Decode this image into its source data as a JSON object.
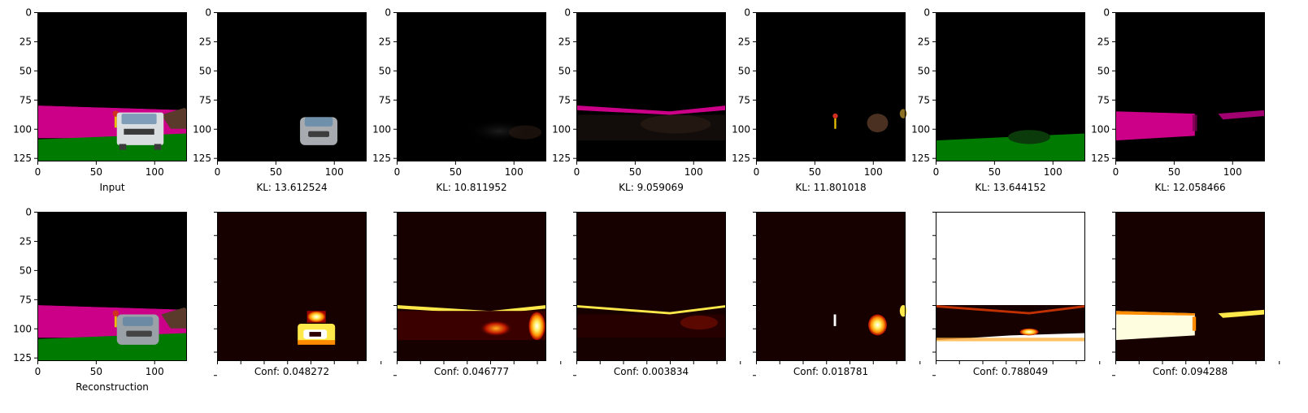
{
  "figure": {
    "background": "#ffffff",
    "image_colors": {
      "black": "#000000",
      "magenta": "#cc0088",
      "green": "#007a00",
      "car_body": "#d9dde0",
      "car_window": "#7f9db8",
      "car_dark": "#3a3a3a",
      "debris_brown": "#5a3a2a",
      "pole_yellow": "#e8c000",
      "pole_red": "#d03020",
      "heat_dark": "#160000",
      "heat_red": "#b00000",
      "heat_orange": "#ff8c00",
      "heat_yellow": "#ffe84a",
      "heat_white": "#ffffff"
    }
  },
  "chart_data": [
    {
      "type": "heatmap",
      "row": "top",
      "image": "input",
      "xlabel": "Input",
      "x_ticks": [
        "0",
        "50",
        "100"
      ],
      "y_ticks": [
        "0",
        "25",
        "50",
        "75",
        "100",
        "125"
      ],
      "xlim": [
        0,
        128
      ],
      "ylim": [
        128,
        0
      ]
    },
    {
      "type": "heatmap",
      "row": "top",
      "image": "component 1",
      "xlabel": "KL: 13.612524",
      "kl": 13.612524,
      "x_ticks": [
        "0",
        "50",
        "100"
      ],
      "y_ticks": [
        "0",
        "25",
        "50",
        "75",
        "100",
        "125"
      ],
      "xlim": [
        0,
        128
      ],
      "ylim": [
        128,
        0
      ]
    },
    {
      "type": "heatmap",
      "row": "top",
      "image": "component 2",
      "xlabel": "KL: 10.811952",
      "kl": 10.811952,
      "x_ticks": [
        "0",
        "50",
        "100"
      ],
      "y_ticks": [
        "0",
        "25",
        "50",
        "75",
        "100",
        "125"
      ],
      "xlim": [
        0,
        128
      ],
      "ylim": [
        128,
        0
      ]
    },
    {
      "type": "heatmap",
      "row": "top",
      "image": "component 3",
      "xlabel": "KL: 9.059069",
      "kl": 9.059069,
      "x_ticks": [
        "0",
        "50",
        "100"
      ],
      "y_ticks": [
        "0",
        "25",
        "50",
        "75",
        "100",
        "125"
      ],
      "xlim": [
        0,
        128
      ],
      "ylim": [
        128,
        0
      ]
    },
    {
      "type": "heatmap",
      "row": "top",
      "image": "component 4",
      "xlabel": "KL: 11.801018",
      "kl": 11.801018,
      "x_ticks": [
        "0",
        "50",
        "100"
      ],
      "y_ticks": [
        "0",
        "25",
        "50",
        "75",
        "100",
        "125"
      ],
      "xlim": [
        0,
        128
      ],
      "ylim": [
        128,
        0
      ]
    },
    {
      "type": "heatmap",
      "row": "top",
      "image": "component 5",
      "xlabel": "KL: 13.644152",
      "kl": 13.644152,
      "x_ticks": [
        "0",
        "50",
        "100"
      ],
      "y_ticks": [
        "0",
        "25",
        "50",
        "75",
        "100",
        "125"
      ],
      "xlim": [
        0,
        128
      ],
      "ylim": [
        128,
        0
      ]
    },
    {
      "type": "heatmap",
      "row": "top",
      "image": "component 6",
      "xlabel": "KL: 12.058466",
      "kl": 12.058466,
      "x_ticks": [
        "0",
        "50",
        "100"
      ],
      "y_ticks": [
        "0",
        "25",
        "50",
        "75",
        "100",
        "125"
      ],
      "xlim": [
        0,
        128
      ],
      "ylim": [
        128,
        0
      ]
    },
    {
      "type": "heatmap",
      "row": "bottom",
      "image": "reconstruction",
      "xlabel": "Reconstruction",
      "x_ticks": [
        "0",
        "50",
        "100"
      ],
      "y_ticks": [
        "0",
        "25",
        "50",
        "75",
        "100",
        "125"
      ],
      "xlim": [
        0,
        128
      ],
      "ylim": [
        128,
        0
      ]
    },
    {
      "type": "heatmap",
      "row": "bottom",
      "image": "confidence 1",
      "xlabel": "Conf: 0.048272",
      "conf": 0.048272,
      "x_ticks": [
        "",
        "",
        "",
        "",
        "",
        "",
        "",
        ""
      ],
      "y_ticks": [
        "",
        "",
        "",
        "",
        "",
        "",
        "",
        ""
      ],
      "xlim": [
        0,
        128
      ],
      "ylim": [
        128,
        0
      ]
    },
    {
      "type": "heatmap",
      "row": "bottom",
      "image": "confidence 2",
      "xlabel": "Conf: 0.046777",
      "conf": 0.046777,
      "x_ticks": [
        "",
        "",
        "",
        "",
        "",
        "",
        "",
        ""
      ],
      "y_ticks": [
        "",
        "",
        "",
        "",
        "",
        "",
        "",
        ""
      ],
      "xlim": [
        0,
        128
      ],
      "ylim": [
        128,
        0
      ]
    },
    {
      "type": "heatmap",
      "row": "bottom",
      "image": "confidence 3",
      "xlabel": "Conf: 0.003834",
      "conf": 0.003834,
      "x_ticks": [
        "",
        "",
        "",
        "",
        "",
        "",
        "",
        ""
      ],
      "y_ticks": [
        "",
        "",
        "",
        "",
        "",
        "",
        "",
        ""
      ],
      "xlim": [
        0,
        128
      ],
      "ylim": [
        128,
        0
      ]
    },
    {
      "type": "heatmap",
      "row": "bottom",
      "image": "confidence 4",
      "xlabel": "Conf: 0.018781",
      "conf": 0.018781,
      "x_ticks": [
        "",
        "",
        "",
        "",
        "",
        "",
        "",
        ""
      ],
      "y_ticks": [
        "",
        "",
        "",
        "",
        "",
        "",
        "",
        ""
      ],
      "xlim": [
        0,
        128
      ],
      "ylim": [
        128,
        0
      ]
    },
    {
      "type": "heatmap",
      "row": "bottom",
      "image": "confidence 5",
      "xlabel": "Conf: 0.788049",
      "conf": 0.788049,
      "x_ticks": [
        "",
        "",
        "",
        "",
        "",
        "",
        "",
        ""
      ],
      "y_ticks": [
        "",
        "",
        "",
        "",
        "",
        "",
        "",
        ""
      ],
      "xlim": [
        0,
        128
      ],
      "ylim": [
        128,
        0
      ]
    },
    {
      "type": "heatmap",
      "row": "bottom",
      "image": "confidence 6",
      "xlabel": "Conf: 0.094288",
      "conf": 0.094288,
      "x_ticks": [
        "",
        "",
        "",
        "",
        "",
        "",
        "",
        ""
      ],
      "y_ticks": [
        "",
        "",
        "",
        "",
        "",
        "",
        "",
        ""
      ],
      "xlim": [
        0,
        128
      ],
      "ylim": [
        128,
        0
      ]
    }
  ]
}
